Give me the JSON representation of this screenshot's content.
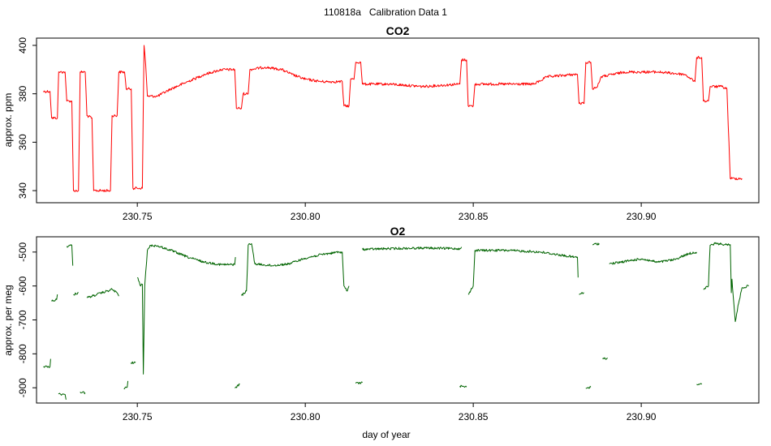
{
  "page": {
    "title": "110818a   Calibration Data 1",
    "xlabel": "day of year"
  },
  "chart_data": [
    {
      "type": "line",
      "title": "CO2",
      "ylabel": "approx. ppm",
      "xlim": [
        230.72,
        230.935
      ],
      "ylim": [
        335,
        403
      ],
      "xticks": [
        230.75,
        230.8,
        230.85,
        230.9
      ],
      "xtick_labels": [
        "230.75",
        "230.80",
        "230.85",
        "230.90"
      ],
      "yticks": [
        340,
        360,
        380,
        400
      ],
      "ytick_labels": [
        "340",
        "360",
        "380",
        "400"
      ],
      "color": "#ff0000",
      "grid": false,
      "series": [
        {
          "values": [
            [
              230.722,
              381
            ],
            [
              230.724,
              381
            ],
            [
              230.7245,
              370
            ],
            [
              230.7262,
              370
            ],
            [
              230.7266,
              389
            ],
            [
              230.7285,
              389
            ],
            [
              230.729,
              377
            ],
            [
              230.7305,
              377
            ],
            [
              230.731,
              340
            ],
            [
              230.7325,
              340
            ],
            [
              230.733,
              389
            ],
            [
              230.7345,
              389
            ],
            [
              230.735,
              371
            ],
            [
              230.7365,
              370
            ],
            [
              230.737,
              340
            ],
            [
              230.742,
              340
            ],
            [
              230.7425,
              371
            ],
            [
              230.744,
              371
            ],
            [
              230.7445,
              389
            ],
            [
              230.7462,
              389
            ],
            [
              230.7467,
              382
            ],
            [
              230.7482,
              382
            ],
            [
              230.7487,
              341
            ],
            [
              230.7515,
              341
            ],
            [
              230.752,
              400
            ],
            [
              230.7525,
              392
            ],
            [
              230.753,
              379
            ],
            [
              230.756,
              379
            ],
            [
              230.76,
              382
            ],
            [
              230.765,
              385
            ],
            [
              230.77,
              388
            ],
            [
              230.775,
              390
            ],
            [
              230.779,
              390
            ],
            [
              230.7795,
              374
            ],
            [
              230.781,
              374
            ],
            [
              230.7815,
              380
            ],
            [
              230.783,
              380
            ],
            [
              230.7835,
              390
            ],
            [
              230.788,
              391
            ],
            [
              230.793,
              390
            ],
            [
              230.796,
              388
            ],
            [
              230.8,
              386
            ],
            [
              230.805,
              385
            ],
            [
              230.811,
              385
            ],
            [
              230.8115,
              375
            ],
            [
              230.813,
              375
            ],
            [
              230.8135,
              386
            ],
            [
              230.8145,
              386
            ],
            [
              230.815,
              393
            ],
            [
              230.8165,
              393
            ],
            [
              230.817,
              384
            ],
            [
              230.825,
              384
            ],
            [
              230.835,
              383
            ],
            [
              230.846,
              384
            ],
            [
              230.8465,
              394
            ],
            [
              230.848,
              394
            ],
            [
              230.8485,
              375
            ],
            [
              230.85,
              375
            ],
            [
              230.8505,
              384
            ],
            [
              230.86,
              384
            ],
            [
              230.868,
              384
            ],
            [
              230.872,
              387
            ],
            [
              230.88,
              388
            ],
            [
              230.881,
              388
            ],
            [
              230.8815,
              376
            ],
            [
              230.883,
              376
            ],
            [
              230.8835,
              393
            ],
            [
              230.885,
              393
            ],
            [
              230.8855,
              382
            ],
            [
              230.887,
              383
            ],
            [
              230.888,
              387
            ],
            [
              230.895,
              389
            ],
            [
              230.905,
              389
            ],
            [
              230.913,
              388
            ],
            [
              230.916,
              385
            ],
            [
              230.9165,
              395
            ],
            [
              230.918,
              395
            ],
            [
              230.9185,
              377
            ],
            [
              230.92,
              377
            ],
            [
              230.9205,
              383
            ],
            [
              230.924,
              383
            ],
            [
              230.9255,
              382
            ],
            [
              230.9265,
              345
            ],
            [
              230.93,
              345
            ]
          ]
        }
      ]
    },
    {
      "type": "line",
      "title": "O2",
      "ylabel": "approx. per meg",
      "xlabel": "day of year",
      "xlim": [
        230.72,
        230.935
      ],
      "ylim": [
        -945,
        -455
      ],
      "xticks": [
        230.75,
        230.8,
        230.85,
        230.9
      ],
      "xtick_labels": [
        "230.75",
        "230.80",
        "230.85",
        "230.90"
      ],
      "yticks": [
        -900,
        -800,
        -700,
        -600,
        -500
      ],
      "ytick_labels": [
        "-900",
        "-800",
        "-700",
        "-600",
        "-500"
      ],
      "color": "#006400",
      "grid": false,
      "series": [
        {
          "values": [
            [
              230.722,
              -838
            ],
            [
              230.724,
              -838
            ],
            [
              230.7242,
              -815
            ]
          ]
        },
        {
          "values": [
            [
              230.7245,
              -645
            ],
            [
              230.726,
              -640
            ],
            [
              230.7262,
              -625
            ]
          ]
        },
        {
          "values": [
            [
              230.7265,
              -918
            ],
            [
              230.7285,
              -920
            ],
            [
              230.7288,
              -935
            ]
          ]
        },
        {
          "values": [
            [
              230.729,
              -483
            ],
            [
              230.7305,
              -480
            ],
            [
              230.7308,
              -540
            ]
          ]
        },
        {
          "values": [
            [
              230.731,
              -625
            ],
            [
              230.7325,
              -620
            ]
          ]
        },
        {
          "values": [
            [
              230.733,
              -912
            ],
            [
              230.7345,
              -915
            ]
          ]
        },
        {
          "values": [
            [
              230.735,
              -635
            ],
            [
              230.738,
              -625
            ],
            [
              230.741,
              -615
            ],
            [
              230.7425,
              -610
            ],
            [
              230.744,
              -620
            ],
            [
              230.7445,
              -630
            ]
          ]
        },
        {
          "values": [
            [
              230.746,
              -903
            ],
            [
              230.747,
              -898
            ],
            [
              230.7472,
              -880
            ]
          ]
        },
        {
          "values": [
            [
              230.748,
              -828
            ],
            [
              230.7495,
              -824
            ]
          ]
        },
        {
          "values": [
            [
              230.75,
              -575
            ],
            [
              230.751,
              -600
            ],
            [
              230.7515,
              -595
            ],
            [
              230.7518,
              -860
            ],
            [
              230.7522,
              -600
            ],
            [
              230.7525,
              -560
            ],
            [
              230.753,
              -495
            ],
            [
              230.754,
              -480
            ],
            [
              230.756,
              -482
            ],
            [
              230.76,
              -495
            ],
            [
              230.765,
              -515
            ],
            [
              230.77,
              -530
            ],
            [
              230.775,
              -537
            ],
            [
              230.779,
              -537
            ],
            [
              230.7792,
              -515
            ]
          ]
        },
        {
          "values": [
            [
              230.779,
              -900
            ],
            [
              230.7805,
              -890
            ]
          ]
        },
        {
          "values": [
            [
              230.781,
              -628
            ],
            [
              230.7825,
              -615
            ],
            [
              230.783,
              -480
            ],
            [
              230.784,
              -475
            ],
            [
              230.785,
              -535
            ],
            [
              230.79,
              -540
            ],
            [
              230.795,
              -535
            ],
            [
              230.8,
              -518
            ],
            [
              230.805,
              -507
            ],
            [
              230.81,
              -500
            ],
            [
              230.811,
              -500
            ],
            [
              230.8115,
              -600
            ],
            [
              230.8125,
              -615
            ],
            [
              230.813,
              -600
            ]
          ]
        },
        {
          "values": [
            [
              230.815,
              -887
            ],
            [
              230.817,
              -885
            ]
          ]
        },
        {
          "values": [
            [
              230.817,
              -492
            ],
            [
              230.825,
              -490
            ],
            [
              230.835,
              -488
            ],
            [
              230.846,
              -490
            ],
            [
              230.8465,
              -485
            ]
          ]
        },
        {
          "values": [
            [
              230.846,
              -895
            ],
            [
              230.848,
              -898
            ]
          ]
        },
        {
          "values": [
            [
              230.8485,
              -625
            ],
            [
              230.85,
              -600
            ],
            [
              230.8505,
              -495
            ],
            [
              230.86,
              -495
            ],
            [
              230.87,
              -500
            ],
            [
              230.88,
              -515
            ],
            [
              230.881,
              -515
            ],
            [
              230.8812,
              -575
            ]
          ]
        },
        {
          "values": [
            [
              230.8815,
              -625
            ],
            [
              230.883,
              -620
            ]
          ]
        },
        {
          "values": [
            [
              230.8835,
              -902
            ],
            [
              230.885,
              -898
            ]
          ]
        },
        {
          "values": [
            [
              230.8855,
              -478
            ],
            [
              230.8875,
              -475
            ]
          ]
        },
        {
          "values": [
            [
              230.8885,
              -815
            ],
            [
              230.89,
              -812
            ]
          ]
        },
        {
          "values": [
            [
              230.8905,
              -535
            ],
            [
              230.895,
              -528
            ],
            [
              230.9,
              -520
            ],
            [
              230.905,
              -530
            ],
            [
              230.91,
              -522
            ],
            [
              230.914,
              -505
            ],
            [
              230.9165,
              -500
            ]
          ]
        },
        {
          "values": [
            [
              230.9165,
              -890
            ],
            [
              230.918,
              -890
            ]
          ]
        },
        {
          "values": [
            [
              230.9185,
              -610
            ],
            [
              230.92,
              -600
            ],
            [
              230.9205,
              -480
            ],
            [
              230.922,
              -475
            ],
            [
              230.925,
              -478
            ],
            [
              230.9265,
              -478
            ],
            [
              230.9268,
              -620
            ],
            [
              230.927,
              -580
            ],
            [
              230.928,
              -705
            ],
            [
              230.929,
              -650
            ],
            [
              230.93,
              -605
            ],
            [
              230.932,
              -600
            ]
          ]
        }
      ]
    }
  ]
}
